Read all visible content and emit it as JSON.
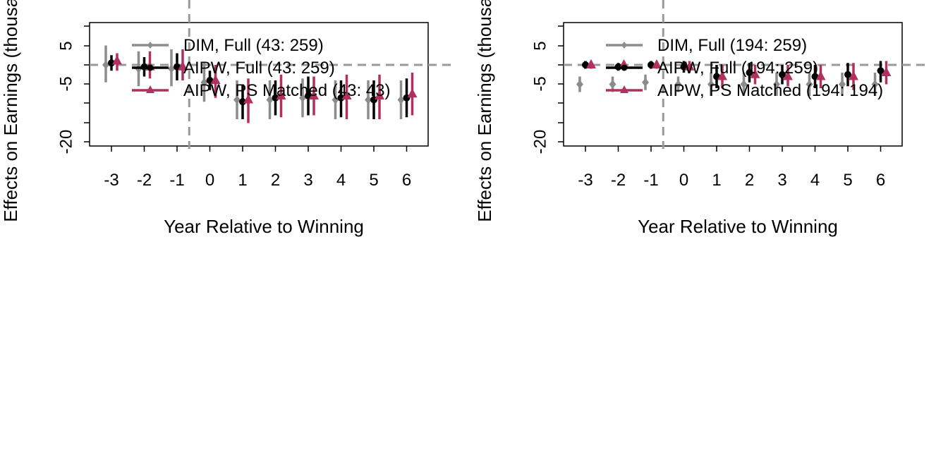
{
  "chart_data": [
    {
      "type": "scatter",
      "panel": "left",
      "xlabel": "Year Relative to Winning",
      "ylabel": "Effects on Earnings (thousands)",
      "x_ticks": [
        -3,
        -2,
        -1,
        0,
        1,
        2,
        3,
        4,
        5,
        6
      ],
      "y_ticks": [
        5,
        -5,
        -20
      ],
      "ylim": [
        -20,
        10
      ],
      "reference_lines": {
        "y": 0,
        "x": -0.5
      },
      "legend": [
        "DIM,  Full (43: 259)",
        "AIPW, Full (43: 259)",
        "AIPW, PS Matched (43: 43)"
      ],
      "legend_position": "top-right",
      "series": [
        {
          "name": "DIM,  Full (43: 259)",
          "color": "#8c8c8c",
          "marker": "diamond",
          "x": [
            -3,
            -2,
            -1,
            0,
            1,
            2,
            3,
            4,
            5,
            6
          ],
          "y": [
            0,
            -1,
            -1,
            -4.5,
            -9,
            -9,
            -8.5,
            -9,
            -9,
            -9
          ],
          "lower": [
            -4.5,
            -5.5,
            -5.5,
            -9.5,
            -14,
            -14,
            -13.5,
            -14,
            -14,
            -14
          ],
          "upper": [
            5,
            3.5,
            4,
            0.5,
            -4,
            -4,
            -3.5,
            -4,
            -4,
            -4
          ]
        },
        {
          "name": "AIPW, Full (43: 259)",
          "color": "#000000",
          "marker": "circle",
          "x": [
            -3,
            -2,
            -1,
            0,
            1,
            2,
            3,
            4,
            5,
            6
          ],
          "y": [
            0.5,
            -0.5,
            -0.5,
            -4,
            -9.5,
            -8.5,
            -8,
            -8.5,
            -9,
            -8.5
          ],
          "lower": [
            -1.5,
            -3,
            -4,
            -6.5,
            -14,
            -13,
            -13,
            -13.5,
            -14,
            -13.5
          ],
          "upper": [
            2.5,
            2,
            3,
            -1.5,
            -5,
            -4,
            -3,
            -4,
            -4,
            -3.5
          ]
        },
        {
          "name": "AIPW, PS Matched (43: 43)",
          "color": "#b03060",
          "marker": "triangle",
          "x": [
            -3,
            -2,
            -1,
            0,
            1,
            2,
            3,
            4,
            5,
            6
          ],
          "y": [
            1,
            -0.5,
            -0.5,
            -4,
            -9,
            -8,
            -8,
            -8,
            -8,
            -7.5
          ],
          "lower": [
            -1.5,
            -3.5,
            -4,
            -8.5,
            -15,
            -13.5,
            -13,
            -14,
            -14,
            -13
          ],
          "upper": [
            3,
            3.5,
            4,
            0,
            -3.5,
            -2.5,
            -3,
            -2.5,
            -2.5,
            -2
          ]
        }
      ]
    },
    {
      "type": "scatter",
      "panel": "right",
      "xlabel": "Year Relative to Winning",
      "ylabel": "Effects on Earnings (thousands)",
      "x_ticks": [
        -3,
        -2,
        -1,
        0,
        1,
        2,
        3,
        4,
        5,
        6
      ],
      "y_ticks": [
        5,
        -5,
        -20
      ],
      "ylim": [
        -20,
        10
      ],
      "reference_lines": {
        "y": 0,
        "x": -0.5
      },
      "legend": [
        "DIM,  Full (194: 259)",
        "AIPW, Full (194: 259)",
        "AIPW, PS Matched (194: 194)"
      ],
      "legend_position": "top-right",
      "series": [
        {
          "name": "DIM,  Full (194: 259)",
          "color": "#8c8c8c",
          "marker": "diamond",
          "x": [
            -3,
            -2,
            -1,
            0,
            1,
            2,
            3,
            4,
            5,
            6
          ],
          "y": [
            -5,
            -5,
            -4.5,
            -5,
            -5,
            -5,
            -5,
            -5,
            -5,
            -5
          ],
          "lower": [
            -7,
            -7,
            -6.5,
            -7,
            -8,
            -8,
            -8,
            -8,
            -8,
            -8
          ],
          "upper": [
            -3,
            -3,
            -2.5,
            -3,
            -2,
            -2,
            -2,
            -2,
            -2,
            -2
          ]
        },
        {
          "name": "AIPW, Full (194: 259)",
          "color": "#000000",
          "marker": "circle",
          "x": [
            -3,
            -2,
            -1,
            0,
            1,
            2,
            3,
            4,
            5,
            6
          ],
          "y": [
            0,
            -0.5,
            0,
            -0.5,
            -3,
            -2,
            -2.5,
            -3,
            -2.5,
            -1.5
          ],
          "lower": [
            -1,
            -1.5,
            -1,
            -2,
            -6,
            -4.5,
            -5,
            -6,
            -5.5,
            -4.5
          ],
          "upper": [
            1,
            0.5,
            1,
            1,
            0,
            0.5,
            0,
            0,
            0.5,
            1
          ]
        },
        {
          "name": "AIPW, PS Matched (194: 194)",
          "color": "#b03060",
          "marker": "triangle",
          "x": [
            -3,
            -2,
            -1,
            0,
            1,
            2,
            3,
            4,
            5,
            6
          ],
          "y": [
            0,
            0,
            0,
            -0.5,
            -3,
            -2.5,
            -3,
            -3,
            -3,
            -2
          ],
          "lower": [
            -1,
            -1,
            -1,
            -2,
            -6,
            -5,
            -5.5,
            -6,
            -6.5,
            -5
          ],
          "upper": [
            1,
            1,
            1,
            1,
            0,
            0,
            0,
            0,
            0.5,
            1
          ]
        }
      ]
    }
  ]
}
